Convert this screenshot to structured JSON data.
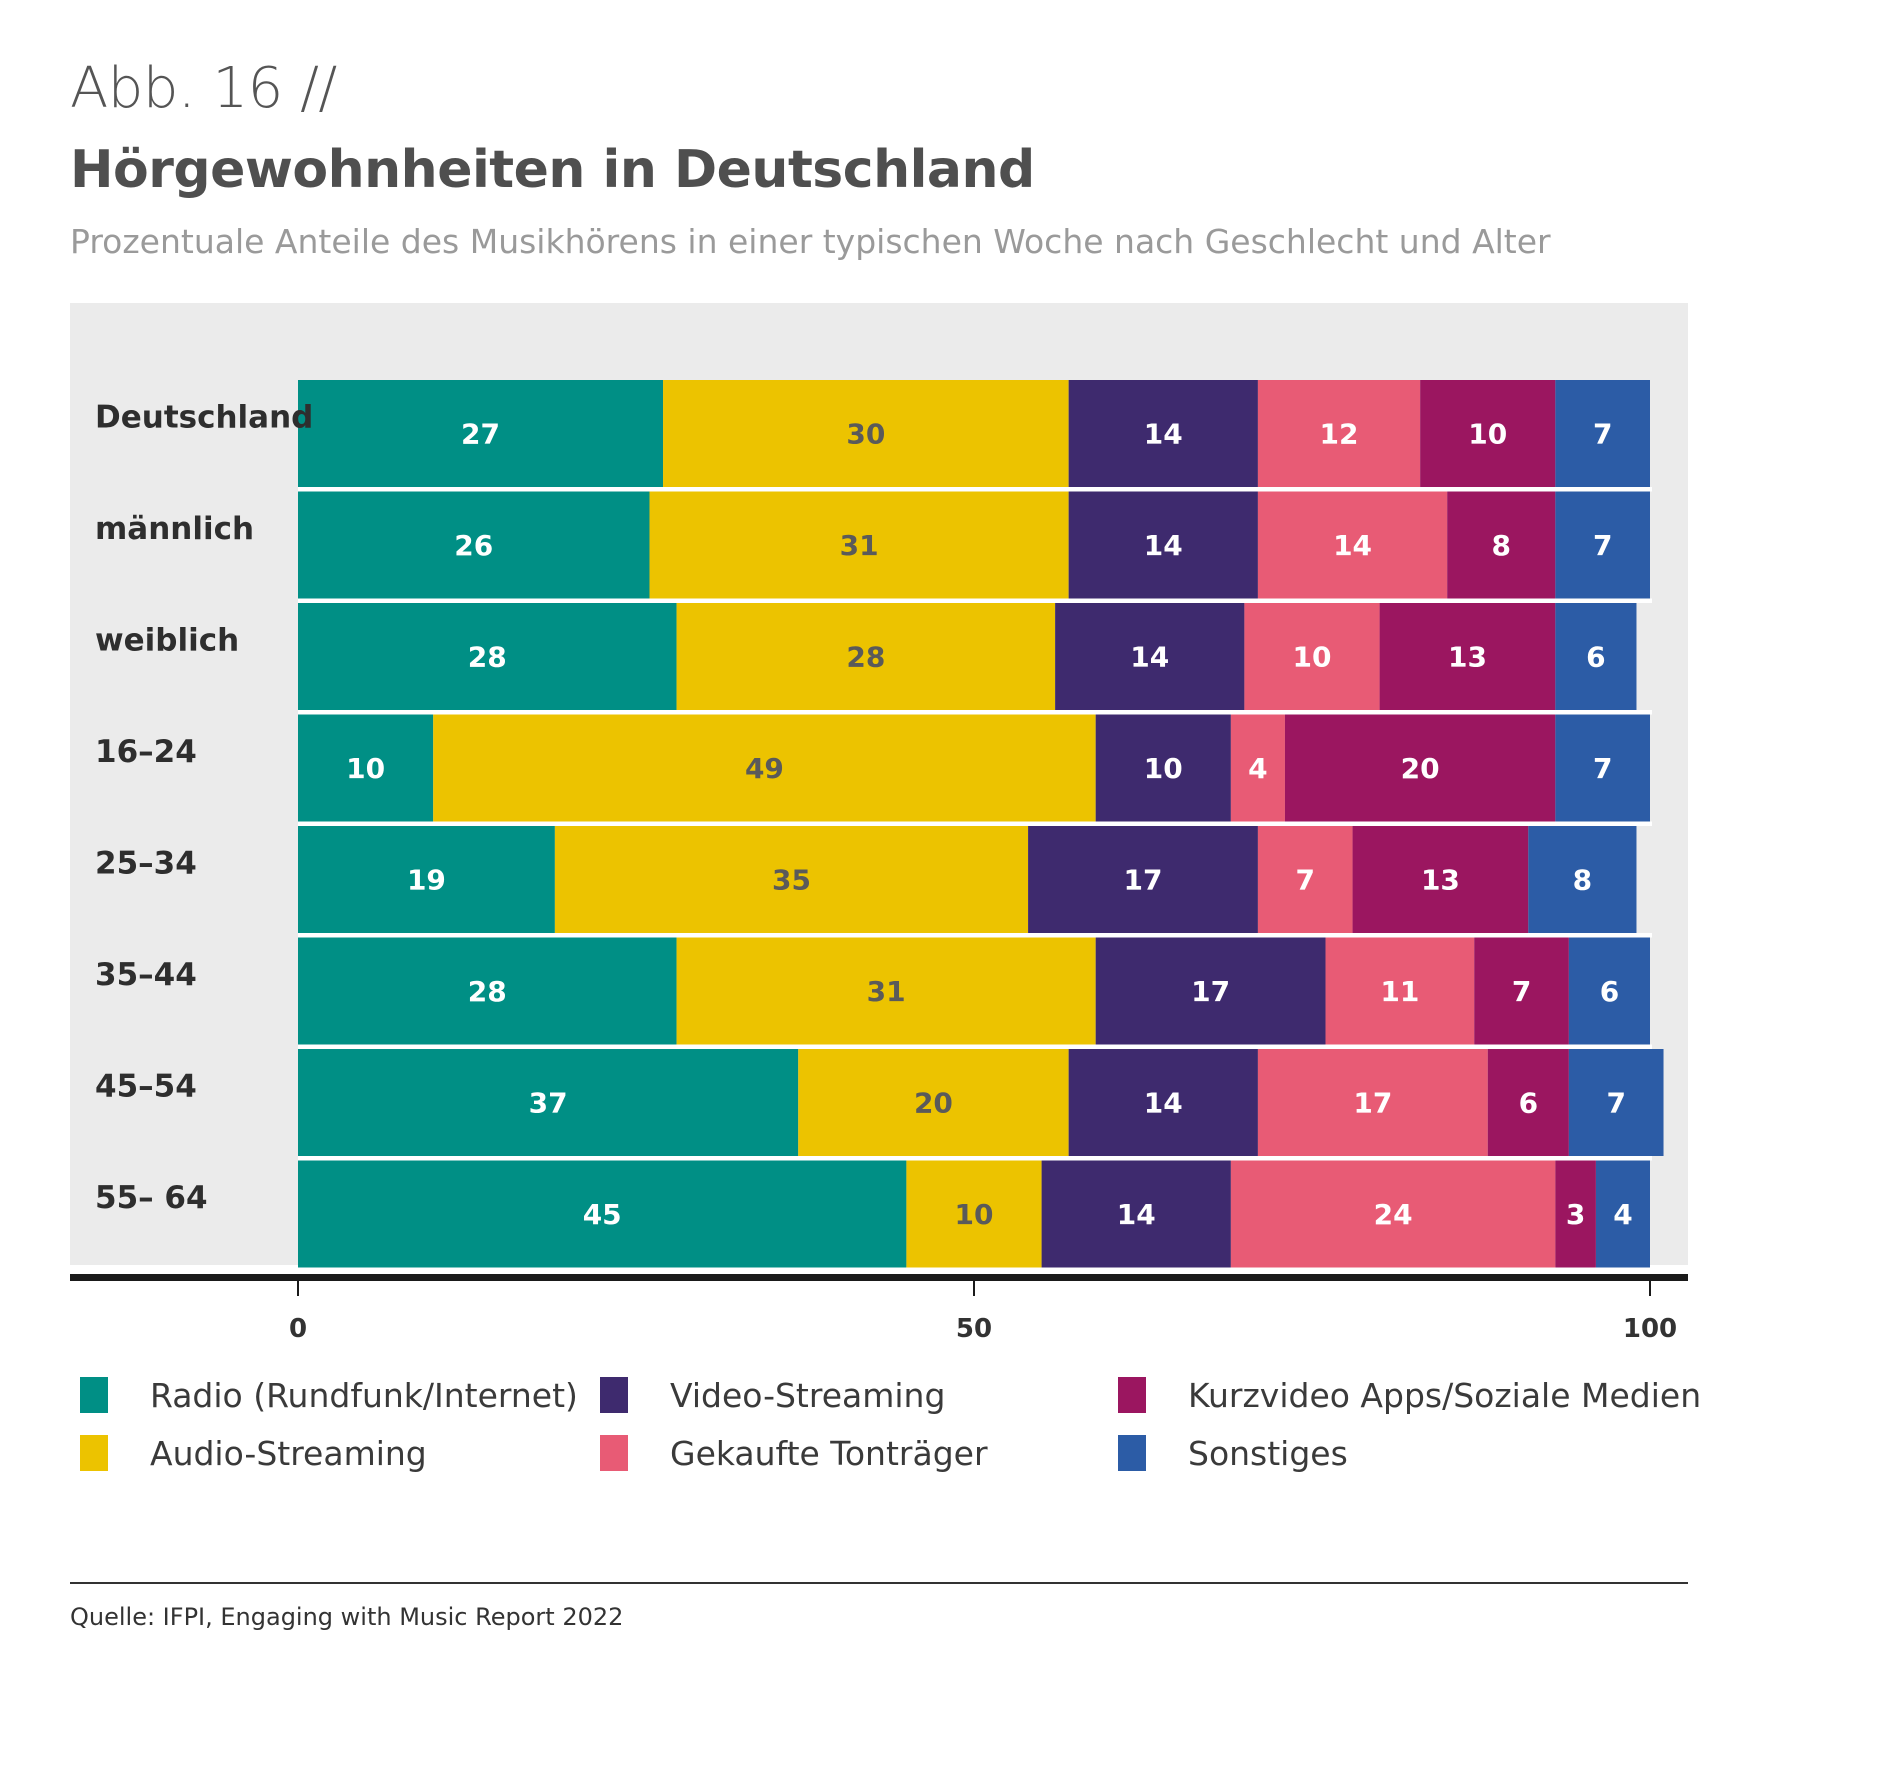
{
  "header": {
    "figure_label": "Abb. 16 //",
    "title": "Hörgewohnheiten in Deutschland",
    "subtitle": "Prozentuale Anteile des Musikhörens in einer typischen Woche nach Geschlecht und Alter"
  },
  "chart_data": {
    "type": "bar",
    "orientation": "horizontal",
    "stacked": true,
    "categories": [
      "Deutschland",
      "männlich",
      "weiblich",
      "16–24",
      "25–34",
      "35–44",
      "45–54",
      "55– 64"
    ],
    "series": [
      {
        "name": "Radio (Rundfunk/Internet)",
        "color": "#008f85",
        "label_color": "#ffffff",
        "values": [
          27,
          26,
          28,
          10,
          19,
          28,
          37,
          45
        ]
      },
      {
        "name": "Audio-Streaming",
        "color": "#ecc300",
        "label_color": "#5a5a5a",
        "values": [
          30,
          31,
          28,
          49,
          35,
          31,
          20,
          10
        ]
      },
      {
        "name": "Video-Streaming",
        "color": "#3e2a6e",
        "label_color": "#ffffff",
        "values": [
          14,
          14,
          14,
          10,
          17,
          17,
          14,
          14
        ]
      },
      {
        "name": "Gekaufte Tonträger",
        "color": "#e85b75",
        "label_color": "#ffffff",
        "values": [
          12,
          14,
          10,
          4,
          7,
          11,
          17,
          24
        ]
      },
      {
        "name": "Kurzvideo Apps/Soziale Medien",
        "color": "#9b1660",
        "label_color": "#ffffff",
        "values": [
          10,
          8,
          13,
          20,
          13,
          7,
          6,
          3
        ]
      },
      {
        "name": "Sonstiges",
        "color": "#2c5ca6",
        "label_color": "#ffffff",
        "values": [
          7,
          7,
          6,
          7,
          8,
          6,
          7,
          4
        ]
      }
    ],
    "xlim": [
      0,
      100
    ],
    "xticks": [
      0,
      50,
      100
    ],
    "grid": false,
    "legend_position": "bottom"
  },
  "footer": {
    "source": "Quelle: IFPI, Engaging with Music Report 2022"
  }
}
